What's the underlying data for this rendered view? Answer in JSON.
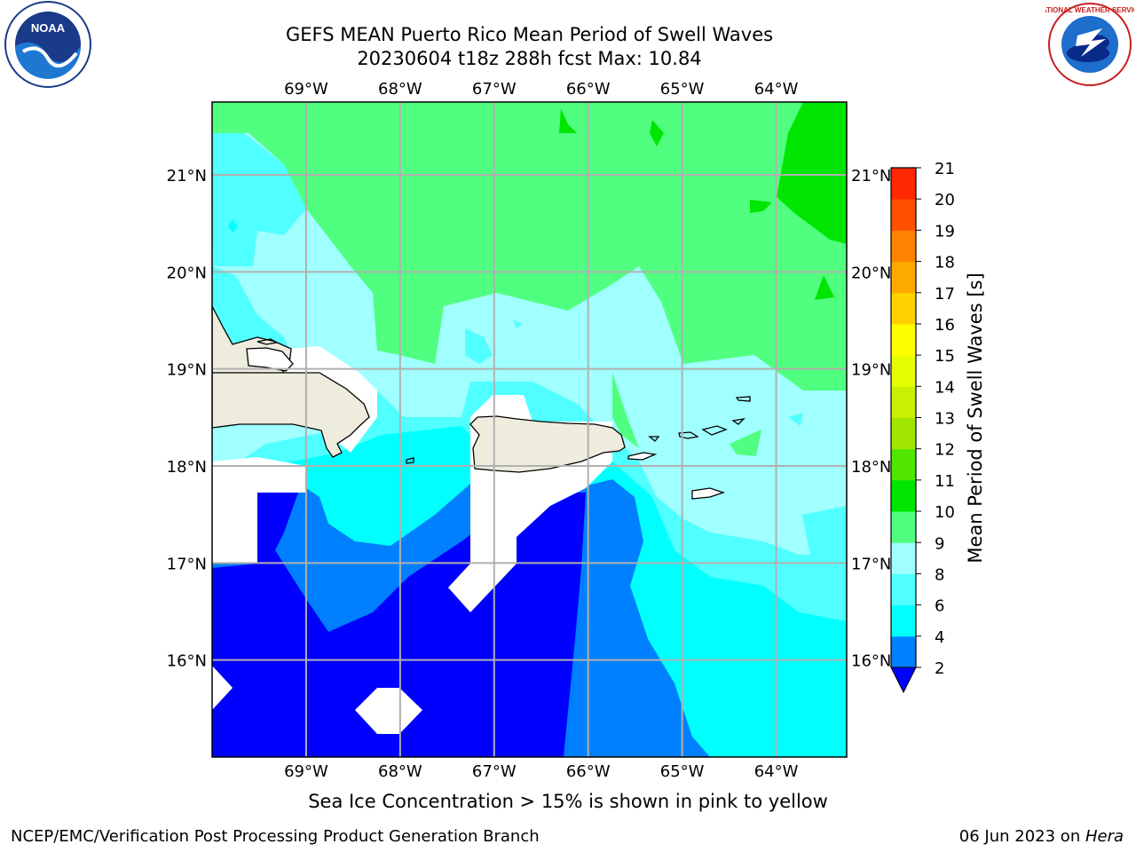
{
  "header": {
    "title_line1": "GEFS MEAN Puerto Rico Mean Period of Swell Waves",
    "title_line2": "20230604 t18z 288h fcst   Max: 10.84"
  },
  "logos": {
    "left": "noaa-logo",
    "left_text": "NOAA",
    "right": "nws-logo",
    "right_text": "NATIONAL WEATHER SERVICE"
  },
  "map": {
    "extent": {
      "lon": [
        -70.0,
        -63.25
      ],
      "lat": [
        15.0,
        21.75
      ]
    },
    "lon_ticks": [
      "69°W",
      "68°W",
      "67°W",
      "66°W",
      "65°W",
      "64°W"
    ],
    "lat_ticks": [
      "21°N",
      "20°N",
      "19°N",
      "18°N",
      "17°N",
      "16°N"
    ],
    "land_color": "#eeecdd"
  },
  "colorbar": {
    "label": "Mean Period of Swell Waves [s]",
    "levels": [
      "2",
      "4",
      "6",
      "8",
      "9",
      "10",
      "11",
      "12",
      "13",
      "14",
      "15",
      "16",
      "17",
      "18",
      "19",
      "20",
      "21"
    ],
    "colors": [
      "#0000ff",
      "#0080ff",
      "#00ffff",
      "#50ffff",
      "#a0ffff",
      "#50ff80",
      "#00e600",
      "#50e600",
      "#a0e600",
      "#c8f000",
      "#e6ff00",
      "#ffff00",
      "#ffd200",
      "#ffaa00",
      "#ff8200",
      "#ff5000",
      "#ff2800",
      "#ff0000"
    ],
    "extend": "min"
  },
  "footer": {
    "caption": "Sea Ice Concentration > 15% is shown in pink to yellow",
    "left": "NCEP/EMC/Verification Post Processing Product Generation Branch",
    "date": "06 Jun 2023 on ",
    "host": "Hera"
  }
}
